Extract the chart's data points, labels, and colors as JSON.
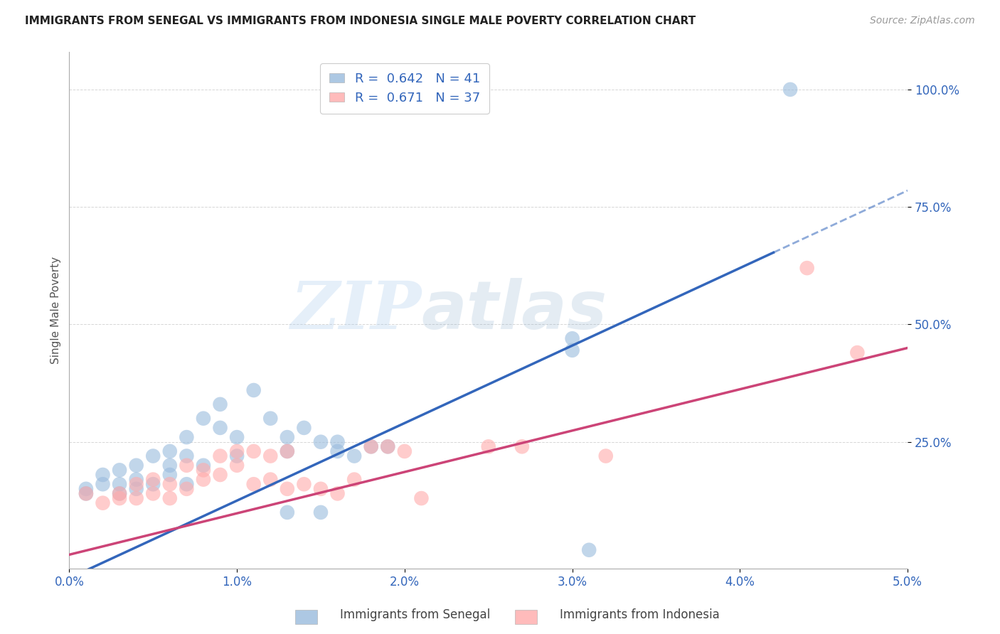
{
  "title": "IMMIGRANTS FROM SENEGAL VS IMMIGRANTS FROM INDONESIA SINGLE MALE POVERTY CORRELATION CHART",
  "source": "Source: ZipAtlas.com",
  "ylabel": "Single Male Poverty",
  "ytick_labels": [
    "100.0%",
    "75.0%",
    "50.0%",
    "25.0%"
  ],
  "ytick_values": [
    1.0,
    0.75,
    0.5,
    0.25
  ],
  "xlim": [
    0.0,
    0.05
  ],
  "ylim": [
    -0.02,
    1.08
  ],
  "legend_blue_r": "0.642",
  "legend_blue_n": "41",
  "legend_pink_r": "0.671",
  "legend_pink_n": "37",
  "legend_label_blue": "Immigrants from Senegal",
  "legend_label_pink": "Immigrants from Indonesia",
  "blue_color": "#99BBDD",
  "pink_color": "#FFAAAA",
  "blue_line_color": "#3366BB",
  "pink_line_color": "#CC4477",
  "blue_intercept": -0.04,
  "blue_slope": 16.5,
  "pink_intercept": 0.01,
  "pink_slope": 8.8,
  "blue_scatter": [
    [
      0.001,
      0.15
    ],
    [
      0.001,
      0.14
    ],
    [
      0.002,
      0.16
    ],
    [
      0.002,
      0.18
    ],
    [
      0.003,
      0.14
    ],
    [
      0.003,
      0.16
    ],
    [
      0.003,
      0.19
    ],
    [
      0.004,
      0.15
    ],
    [
      0.004,
      0.17
    ],
    [
      0.004,
      0.2
    ],
    [
      0.005,
      0.16
    ],
    [
      0.005,
      0.22
    ],
    [
      0.006,
      0.18
    ],
    [
      0.006,
      0.2
    ],
    [
      0.006,
      0.23
    ],
    [
      0.007,
      0.16
    ],
    [
      0.007,
      0.22
    ],
    [
      0.007,
      0.26
    ],
    [
      0.008,
      0.2
    ],
    [
      0.008,
      0.3
    ],
    [
      0.009,
      0.28
    ],
    [
      0.009,
      0.33
    ],
    [
      0.01,
      0.22
    ],
    [
      0.01,
      0.26
    ],
    [
      0.011,
      0.36
    ],
    [
      0.012,
      0.3
    ],
    [
      0.013,
      0.23
    ],
    [
      0.013,
      0.26
    ],
    [
      0.014,
      0.28
    ],
    [
      0.015,
      0.25
    ],
    [
      0.016,
      0.23
    ],
    [
      0.016,
      0.25
    ],
    [
      0.017,
      0.22
    ],
    [
      0.018,
      0.24
    ],
    [
      0.019,
      0.24
    ],
    [
      0.013,
      0.1
    ],
    [
      0.015,
      0.1
    ],
    [
      0.03,
      0.445
    ],
    [
      0.03,
      0.47
    ],
    [
      0.043,
      1.0
    ],
    [
      0.031,
      0.02
    ]
  ],
  "pink_scatter": [
    [
      0.001,
      0.14
    ],
    [
      0.002,
      0.12
    ],
    [
      0.003,
      0.13
    ],
    [
      0.003,
      0.14
    ],
    [
      0.004,
      0.13
    ],
    [
      0.004,
      0.16
    ],
    [
      0.005,
      0.14
    ],
    [
      0.005,
      0.17
    ],
    [
      0.006,
      0.13
    ],
    [
      0.006,
      0.16
    ],
    [
      0.007,
      0.15
    ],
    [
      0.007,
      0.2
    ],
    [
      0.008,
      0.17
    ],
    [
      0.008,
      0.19
    ],
    [
      0.009,
      0.18
    ],
    [
      0.009,
      0.22
    ],
    [
      0.01,
      0.2
    ],
    [
      0.01,
      0.23
    ],
    [
      0.011,
      0.23
    ],
    [
      0.011,
      0.16
    ],
    [
      0.012,
      0.17
    ],
    [
      0.012,
      0.22
    ],
    [
      0.013,
      0.23
    ],
    [
      0.013,
      0.15
    ],
    [
      0.014,
      0.16
    ],
    [
      0.015,
      0.15
    ],
    [
      0.016,
      0.14
    ],
    [
      0.017,
      0.17
    ],
    [
      0.018,
      0.24
    ],
    [
      0.019,
      0.24
    ],
    [
      0.02,
      0.23
    ],
    [
      0.021,
      0.13
    ],
    [
      0.025,
      0.24
    ],
    [
      0.027,
      0.24
    ],
    [
      0.032,
      0.22
    ],
    [
      0.044,
      0.62
    ],
    [
      0.047,
      0.44
    ]
  ],
  "watermark_zip": "ZIP",
  "watermark_atlas": "atlas",
  "background_color": "#FFFFFF",
  "grid_color": "#CCCCCC"
}
